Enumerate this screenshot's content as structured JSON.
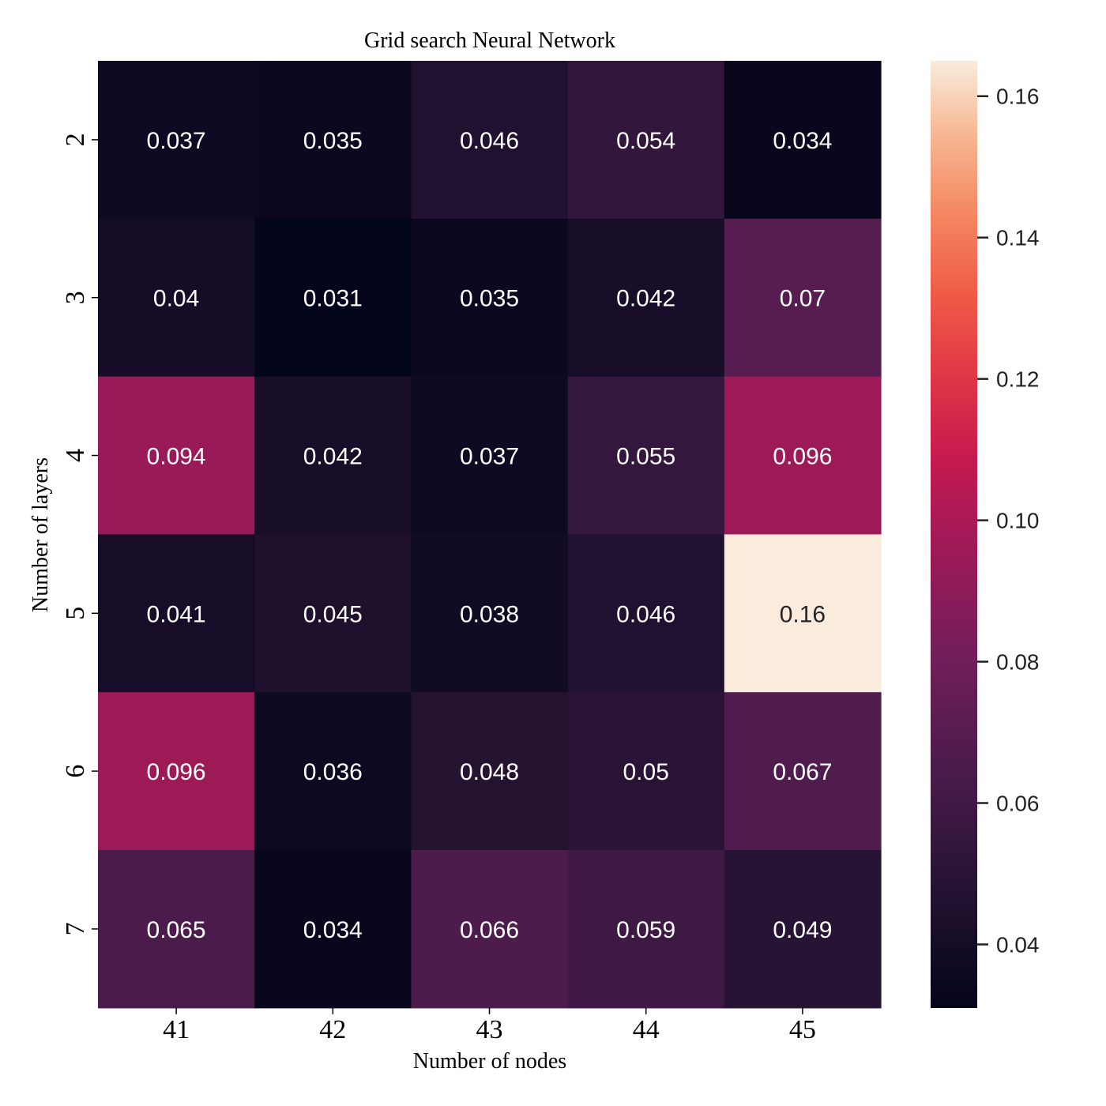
{
  "chart_data": {
    "type": "heatmap",
    "title": "Grid search Neural Network",
    "xlabel": "Number of nodes",
    "ylabel": "Number of layers",
    "x_categories": [
      "41",
      "42",
      "43",
      "44",
      "45"
    ],
    "y_categories": [
      "2",
      "3",
      "4",
      "5",
      "6",
      "7"
    ],
    "cell_labels": [
      [
        "0.037",
        "0.035",
        "0.046",
        "0.054",
        "0.034"
      ],
      [
        "0.04",
        "0.031",
        "0.035",
        "0.042",
        "0.07"
      ],
      [
        "0.094",
        "0.042",
        "0.037",
        "0.055",
        "0.096"
      ],
      [
        "0.041",
        "0.045",
        "0.038",
        "0.046",
        "0.16"
      ],
      [
        "0.096",
        "0.036",
        "0.048",
        "0.05",
        "0.067"
      ],
      [
        "0.065",
        "0.034",
        "0.066",
        "0.059",
        "0.049"
      ]
    ],
    "values": [
      [
        0.037,
        0.035,
        0.046,
        0.054,
        0.034
      ],
      [
        0.04,
        0.031,
        0.035,
        0.042,
        0.07
      ],
      [
        0.094,
        0.042,
        0.037,
        0.055,
        0.096
      ],
      [
        0.041,
        0.045,
        0.038,
        0.046,
        0.165
      ],
      [
        0.096,
        0.036,
        0.048,
        0.05,
        0.067
      ],
      [
        0.065,
        0.034,
        0.066,
        0.059,
        0.049
      ]
    ],
    "colorbar": {
      "colormap": "rocket",
      "range": [
        0.031,
        0.165
      ],
      "ticks": [
        0.04,
        0.06,
        0.08,
        0.1,
        0.12,
        0.14,
        0.16
      ],
      "tick_labels": [
        "0.04",
        "0.06",
        "0.08",
        "0.10",
        "0.12",
        "0.14",
        "0.16"
      ],
      "position": "right"
    },
    "colors": {
      "low": "#03051a",
      "high": "#faebdd",
      "annotation_dark_bg": "#ffffff",
      "annotation_light_bg": "#262626"
    }
  }
}
